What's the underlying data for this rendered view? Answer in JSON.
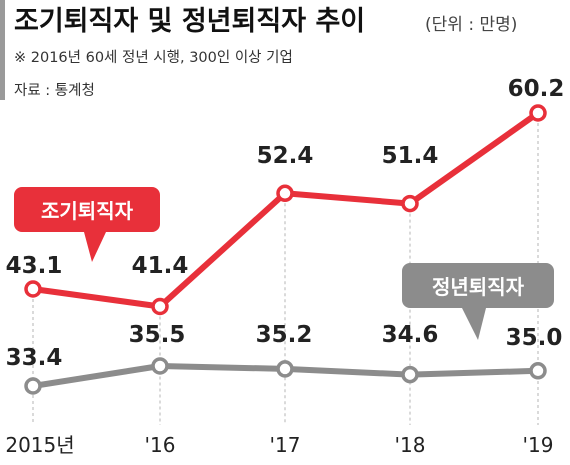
{
  "header": {
    "title": "조기퇴직자 및 정년퇴직자 추이",
    "unit": "(단위 : 만명)",
    "note": "※ 2016년 60세 정년 시행, 300인 이상 기업",
    "source": "자료 : 통계청"
  },
  "chart_data": {
    "type": "line",
    "categories": [
      "2015년",
      "'16",
      "'17",
      "'18",
      "'19"
    ],
    "series": [
      {
        "name": "조기퇴직자",
        "values": [
          43.1,
          41.4,
          52.4,
          51.4,
          60.2
        ],
        "color": "#e8303a"
      },
      {
        "name": "정년퇴직자",
        "values": [
          33.4,
          35.5,
          35.2,
          34.6,
          35.0
        ],
        "color": "#8c8c8c"
      }
    ],
    "value_labels": {
      "series_0": [
        "43.1",
        "41.4",
        "52.4",
        "51.4",
        "60.2"
      ],
      "series_1": [
        "33.4",
        "35.5",
        "35.2",
        "34.6",
        "35.0"
      ]
    },
    "grid": "vertical-dashed",
    "legend": "callouts"
  }
}
